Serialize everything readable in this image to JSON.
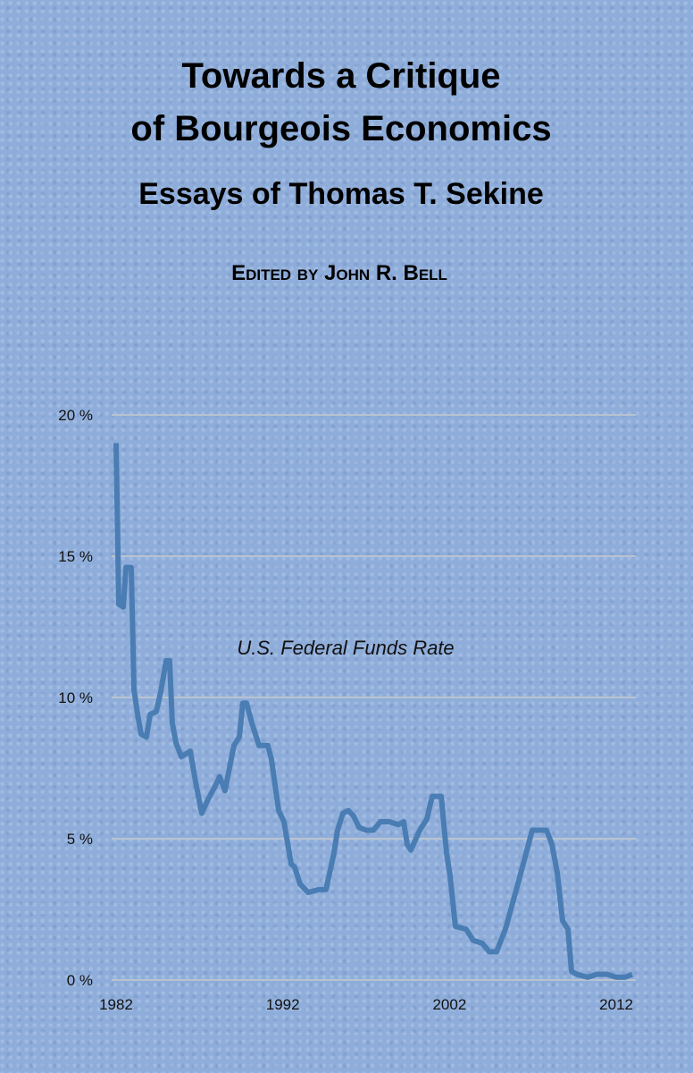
{
  "cover": {
    "title_lines": [
      "Towards a Critique",
      "of Bourgeois Economics"
    ],
    "subtitle": "Essays of Thomas T. Sekine",
    "editor": "Edited by John R. Bell"
  },
  "chart_data": {
    "type": "line",
    "annotation": "U.S. Federal Funds Rate",
    "x": [
      1982.0,
      1982.16,
      1982.43,
      1982.59,
      1982.91,
      1983.07,
      1983.29,
      1983.5,
      1983.82,
      1984.04,
      1984.41,
      1984.68,
      1985.0,
      1985.21,
      1985.37,
      1985.59,
      1985.91,
      1986.45,
      1986.77,
      1987.14,
      1987.52,
      1987.89,
      1988.21,
      1988.53,
      1989.07,
      1989.39,
      1989.6,
      1989.82,
      1990.14,
      1990.57,
      1991.1,
      1991.32,
      1991.75,
      1992.07,
      1992.5,
      1992.71,
      1993.03,
      1993.52,
      1994.16,
      1994.59,
      1995.07,
      1995.28,
      1995.6,
      1995.93,
      1996.25,
      1996.57,
      1997.0,
      1997.43,
      1997.85,
      1998.39,
      1998.93,
      1999.25,
      1999.46,
      1999.68,
      2000.21,
      2000.64,
      2000.96,
      2001.5,
      2001.82,
      2002.03,
      2002.35,
      2002.99,
      2003.42,
      2003.96,
      2004.39,
      2004.82,
      2005.35,
      2006.1,
      2006.96,
      2007.82,
      2008.14,
      2008.46,
      2008.78,
      2009.1,
      2009.32,
      2009.64,
      2010.28,
      2010.82,
      2011.46,
      2012.0,
      2012.53,
      2012.96
    ],
    "series": [
      {
        "color": "#4a7db3",
        "values": [
          19.0,
          13.3,
          13.2,
          14.6,
          14.6,
          10.3,
          9.4,
          8.7,
          8.6,
          9.4,
          9.5,
          10.2,
          11.3,
          11.3,
          9.1,
          8.4,
          7.9,
          8.1,
          7.0,
          5.9,
          6.4,
          6.8,
          7.2,
          6.7,
          8.3,
          8.6,
          9.8,
          9.8,
          9.1,
          8.3,
          8.3,
          7.8,
          6.0,
          5.6,
          4.1,
          4.0,
          3.4,
          3.1,
          3.2,
          3.2,
          4.5,
          5.3,
          5.9,
          6.0,
          5.8,
          5.4,
          5.3,
          5.3,
          5.6,
          5.6,
          5.5,
          5.6,
          4.8,
          4.6,
          5.3,
          5.7,
          6.5,
          6.5,
          4.5,
          3.7,
          1.9,
          1.8,
          1.4,
          1.3,
          1.0,
          1.0,
          1.8,
          3.4,
          5.3,
          5.3,
          4.8,
          3.8,
          2.1,
          1.8,
          0.3,
          0.2,
          0.1,
          0.2,
          0.2,
          0.1,
          0.1,
          0.2
        ]
      }
    ],
    "xlim": [
      1982,
      2012.96
    ],
    "xticks": [
      1982,
      1992,
      2002,
      2012
    ],
    "ylim": [
      0,
      20
    ],
    "yticks": [
      {
        "value": 0,
        "label": "0 %"
      },
      {
        "value": 5,
        "label": "5 %"
      },
      {
        "value": 10,
        "label": "10 %"
      },
      {
        "value": 15,
        "label": "15 %"
      },
      {
        "value": 20,
        "label": "20 %"
      }
    ],
    "grid": true
  }
}
